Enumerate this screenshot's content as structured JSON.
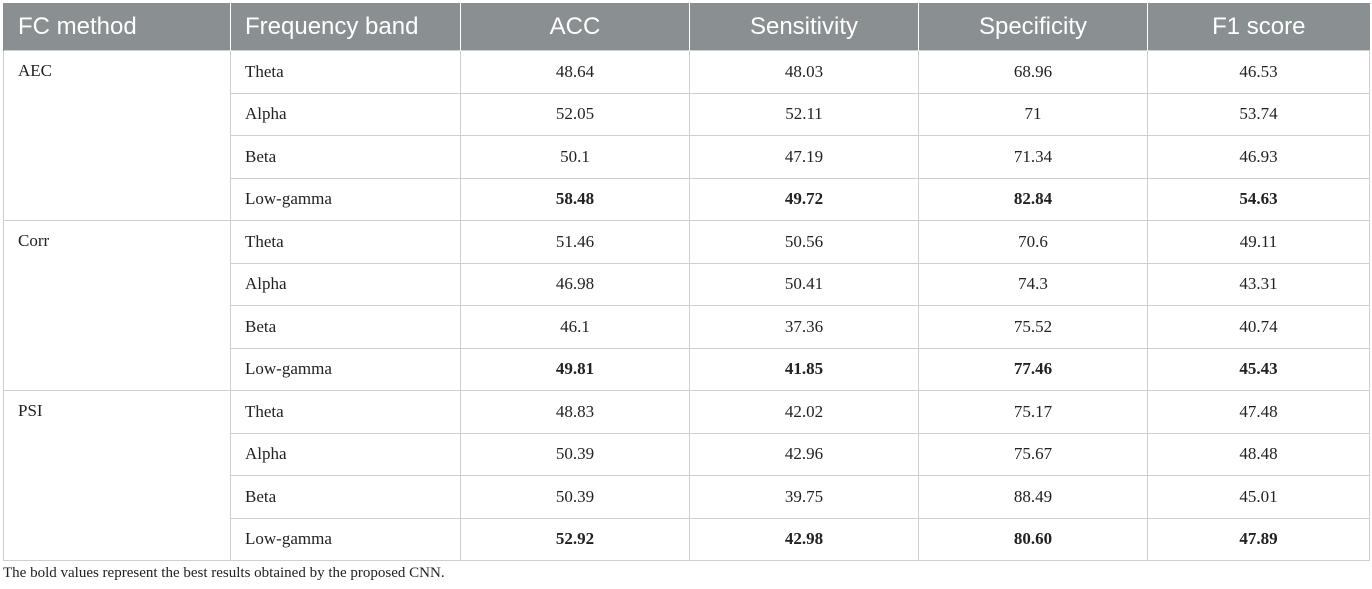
{
  "table": {
    "headers": [
      "FC method",
      "Frequency band",
      "ACC",
      "Sensitivity",
      "Specificity",
      "F1 score"
    ],
    "groups": [
      {
        "method": "AEC",
        "rows": [
          {
            "band": "Theta",
            "acc": "48.64",
            "sensitivity": "48.03",
            "specificity": "68.96",
            "f1": "46.53",
            "bold": false
          },
          {
            "band": "Alpha",
            "acc": "52.05",
            "sensitivity": "52.11",
            "specificity": "71",
            "f1": "53.74",
            "bold": false
          },
          {
            "band": "Beta",
            "acc": "50.1",
            "sensitivity": "47.19",
            "specificity": "71.34",
            "f1": "46.93",
            "bold": false
          },
          {
            "band": "Low-gamma",
            "acc": "58.48",
            "sensitivity": "49.72",
            "specificity": "82.84",
            "f1": "54.63",
            "bold": true
          }
        ]
      },
      {
        "method": "Corr",
        "rows": [
          {
            "band": "Theta",
            "acc": "51.46",
            "sensitivity": "50.56",
            "specificity": "70.6",
            "f1": "49.11",
            "bold": false
          },
          {
            "band": "Alpha",
            "acc": "46.98",
            "sensitivity": "50.41",
            "specificity": "74.3",
            "f1": "43.31",
            "bold": false
          },
          {
            "band": "Beta",
            "acc": "46.1",
            "sensitivity": "37.36",
            "specificity": "75.52",
            "f1": "40.74",
            "bold": false
          },
          {
            "band": "Low-gamma",
            "acc": "49.81",
            "sensitivity": "41.85",
            "specificity": "77.46",
            "f1": "45.43",
            "bold": true
          }
        ]
      },
      {
        "method": "PSI",
        "rows": [
          {
            "band": "Theta",
            "acc": "48.83",
            "sensitivity": "42.02",
            "specificity": "75.17",
            "f1": "47.48",
            "bold": false
          },
          {
            "band": "Alpha",
            "acc": "50.39",
            "sensitivity": "42.96",
            "specificity": "75.67",
            "f1": "48.48",
            "bold": false
          },
          {
            "band": "Beta",
            "acc": "50.39",
            "sensitivity": "39.75",
            "specificity": "88.49",
            "f1": "45.01",
            "bold": false
          },
          {
            "band": "Low-gamma",
            "acc": "52.92",
            "sensitivity": "42.98",
            "specificity": "80.60",
            "f1": "47.89",
            "bold": true
          }
        ]
      }
    ]
  },
  "footnote": "The bold values represent the best results obtained by the proposed CNN.",
  "colors": {
    "header_bg": "#8a8f91",
    "header_text": "#ffffff",
    "grid": "#cfcfcf"
  }
}
